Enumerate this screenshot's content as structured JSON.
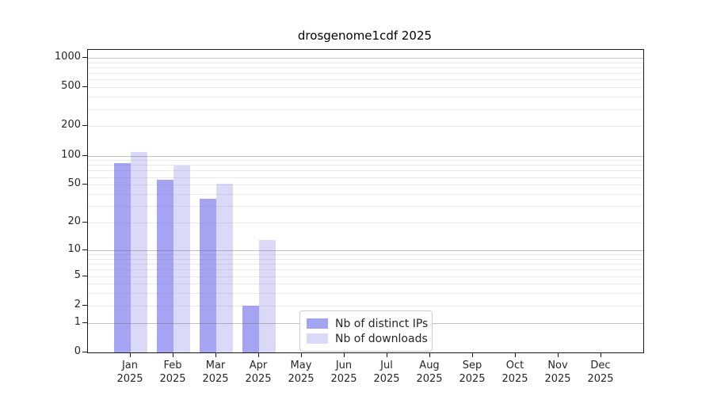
{
  "chart_data": {
    "type": "bar",
    "title": "drosgenome1cdf 2025",
    "categories": [
      "Jan",
      "Feb",
      "Mar",
      "Apr",
      "May",
      "Jun",
      "Jul",
      "Aug",
      "Sep",
      "Oct",
      "Nov",
      "Dec"
    ],
    "category_year": "2025",
    "series": [
      {
        "name": "Nb of distinct IPs",
        "color": "#a4a4f2",
        "values": [
          83,
          56,
          36,
          2,
          0,
          0,
          0,
          0,
          0,
          0,
          0,
          0
        ]
      },
      {
        "name": "Nb of downloads",
        "color": "#dadaf8",
        "values": [
          108,
          79,
          51,
          13,
          0,
          0,
          0,
          0,
          0,
          0,
          0,
          0
        ]
      }
    ],
    "xlabel": "",
    "ylabel": "",
    "y_scale": "log10(1+v)",
    "y_ticks": [
      0,
      1,
      2,
      5,
      10,
      20,
      50,
      100,
      200,
      500,
      1000
    ],
    "y_major_gridlines": [
      1,
      10,
      100,
      1000
    ],
    "ylim": [
      0,
      1200
    ],
    "grid": "horizontal",
    "legend_position": "lower-center"
  }
}
